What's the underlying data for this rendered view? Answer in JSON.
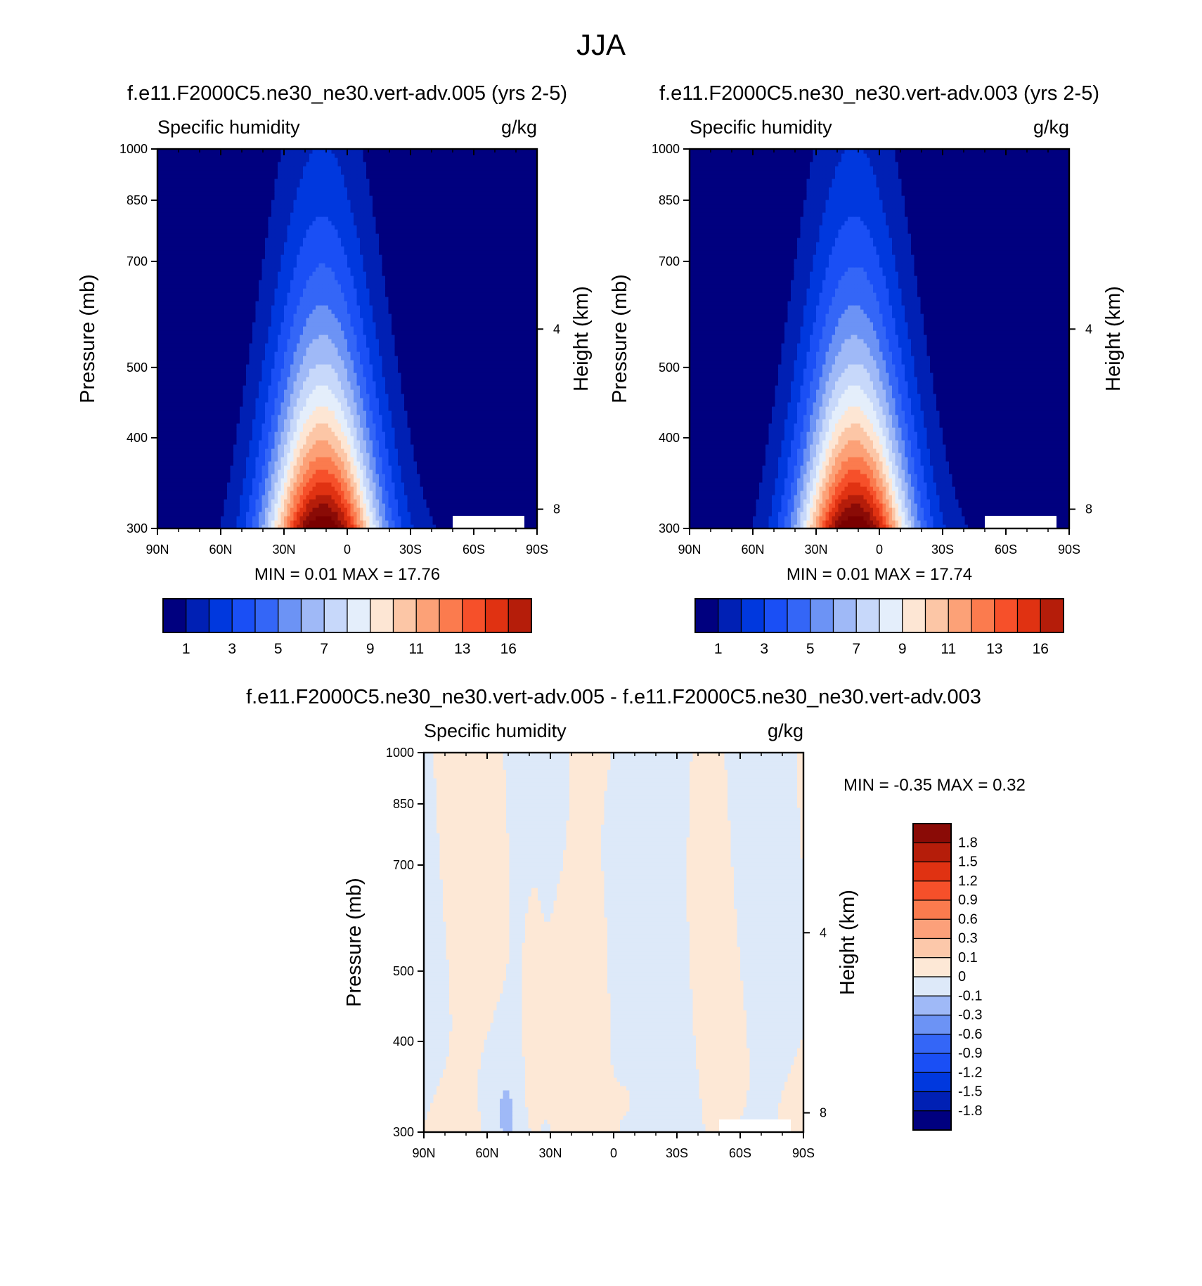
{
  "figure": {
    "title": "JJA"
  },
  "colors": {
    "abs_levels": [
      "#00007f",
      "#0020b4",
      "#0038de",
      "#1a4ff5",
      "#3466f7",
      "#6c93f5",
      "#9fb9f7",
      "#c7d8fa",
      "#e4eefb",
      "#fde6d4",
      "#fcc6a6",
      "#fca177",
      "#fb7b4e",
      "#f6502a",
      "#e03212",
      "#b51d0a",
      "#8a0b06",
      "#7a0000"
    ],
    "diff_levels": [
      "#00007f",
      "#0020b4",
      "#0038de",
      "#1a4ff5",
      "#3466f7",
      "#6c93f5",
      "#9fb9f7",
      "#dde9f9",
      "#fde8d6",
      "#fcc8aa",
      "#fca07a",
      "#fb7b4e",
      "#f6502a",
      "#e03212",
      "#b51d0a",
      "#8a0b06"
    ]
  },
  "chart_data": [
    {
      "id": "panel1",
      "type": "heatmap",
      "title": "f.e11.F2000C5.ne30_ne30.vert-adv.005 (yrs 2-5)",
      "left_label": "Specific humidity",
      "right_label": "g/kg",
      "ylabel": "Pressure (mb)",
      "y2label": "Height (km)",
      "x_ticks": [
        "90N",
        "60N",
        "30N",
        "0",
        "30S",
        "60S",
        "90S"
      ],
      "y_ticks": [
        "300",
        "400",
        "500",
        "700",
        "850",
        "1000"
      ],
      "y2_ticks": [
        "8",
        "4"
      ],
      "xlim": [
        90,
        -90
      ],
      "ylim": [
        1000,
        300
      ],
      "y_scale": "log",
      "minmax": "MIN =   0.01  MAX =  17.76",
      "colorbar_labels": [
        "1",
        "3",
        "5",
        "7",
        "9",
        "11",
        "13",
        "16"
      ],
      "surface_peak_lat": 12,
      "surface_peak_value": 17.76
    },
    {
      "id": "panel2",
      "type": "heatmap",
      "title": "f.e11.F2000C5.ne30_ne30.vert-adv.003 (yrs 2-5)",
      "left_label": "Specific humidity",
      "right_label": "g/kg",
      "ylabel": "Pressure (mb)",
      "y2label": "Height (km)",
      "x_ticks": [
        "90N",
        "60N",
        "30N",
        "0",
        "30S",
        "60S",
        "90S"
      ],
      "y_ticks": [
        "300",
        "400",
        "500",
        "700",
        "850",
        "1000"
      ],
      "y2_ticks": [
        "8",
        "4"
      ],
      "xlim": [
        90,
        -90
      ],
      "ylim": [
        1000,
        300
      ],
      "y_scale": "log",
      "minmax": "MIN =   0.01  MAX =  17.74",
      "colorbar_labels": [
        "1",
        "3",
        "5",
        "7",
        "9",
        "11",
        "13",
        "16"
      ],
      "surface_peak_lat": 12,
      "surface_peak_value": 17.74
    },
    {
      "id": "panel3",
      "type": "heatmap",
      "title": "f.e11.F2000C5.ne30_ne30.vert-adv.005 - f.e11.F2000C5.ne30_ne30.vert-adv.003",
      "left_label": "Specific humidity",
      "right_label": "g/kg",
      "ylabel": "Pressure (mb)",
      "y2label": "Height (km)",
      "x_ticks": [
        "90N",
        "60N",
        "30N",
        "0",
        "30S",
        "60S",
        "90S"
      ],
      "y_ticks": [
        "300",
        "400",
        "500",
        "700",
        "850",
        "1000"
      ],
      "y2_ticks": [
        "8",
        "4"
      ],
      "xlim": [
        90,
        -90
      ],
      "ylim": [
        1000,
        300
      ],
      "y_scale": "log",
      "minmax": "MIN =  -0.35  MAX =   0.32",
      "colorbar_labels": [
        "1.8",
        "1.5",
        "1.2",
        "0.9",
        "0.6",
        "0.3",
        "0.1",
        "0",
        "-0.1",
        "-0.3",
        "-0.6",
        "-0.9",
        "-1.2",
        "-1.5",
        "-1.8"
      ]
    }
  ]
}
